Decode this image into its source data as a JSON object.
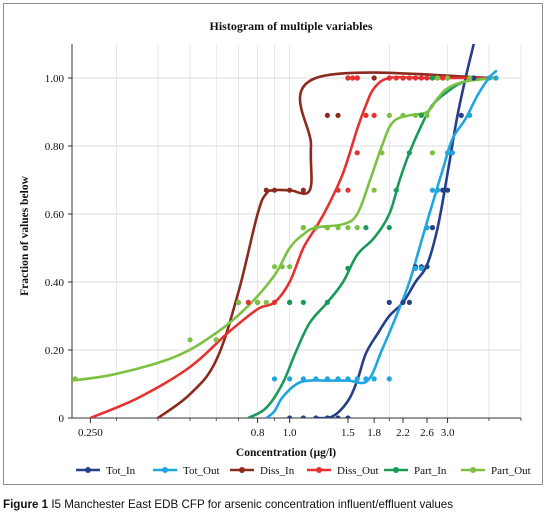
{
  "caption": {
    "prefix": "Figure 1",
    "text": " I5 Manchester East EDB CFP for arsenic concentration influent/effluent values"
  },
  "chart_data": {
    "type": "line",
    "title": "Histogram of multiple variables",
    "xlabel": "Concentration (µg/l)",
    "ylabel": "Fraction of values below",
    "x_scale": "log",
    "xlim": [
      0.22,
      5.0
    ],
    "ylim": [
      0,
      1.1
    ],
    "x_ticks": [
      0.25,
      0.8,
      1.0,
      1.5,
      1.8,
      2.2,
      2.6,
      3.0
    ],
    "x_tick_labels": [
      "0.250",
      "0.8",
      "1.0",
      "1.5",
      "1.8",
      "2.2",
      "2.6",
      "3.0"
    ],
    "y_ticks": [
      0,
      0.2,
      0.4,
      0.6,
      0.8,
      1.0
    ],
    "y_tick_labels": [
      "0",
      "0.20",
      "0.40",
      "0.60",
      "0.80",
      "1.00"
    ],
    "grid": true,
    "legend_position": "bottom",
    "series": [
      {
        "name": "Tot_In",
        "color": "#253f8a",
        "curve": [
          [
            1.2,
            0
          ],
          [
            1.35,
            0.005
          ],
          [
            1.5,
            0.05
          ],
          [
            1.6,
            0.11
          ],
          [
            1.7,
            0.19
          ],
          [
            1.85,
            0.25
          ],
          [
            2.0,
            0.3
          ],
          [
            2.2,
            0.34
          ],
          [
            2.4,
            0.4
          ],
          [
            2.6,
            0.45
          ],
          [
            2.8,
            0.56
          ],
          [
            3.0,
            0.72
          ],
          [
            3.2,
            0.88
          ],
          [
            3.4,
            1.0
          ],
          [
            3.6,
            1.1
          ]
        ],
        "points": [
          [
            1.0,
            0
          ],
          [
            1.1,
            0
          ],
          [
            1.2,
            0
          ],
          [
            1.3,
            0
          ],
          [
            1.4,
            0
          ],
          [
            1.5,
            0
          ],
          [
            2.0,
            0.34
          ],
          [
            2.2,
            0.34
          ],
          [
            2.3,
            0.34
          ],
          [
            2.4,
            0.445
          ],
          [
            2.5,
            0.445
          ],
          [
            2.6,
            0.445
          ],
          [
            2.7,
            0.56
          ],
          [
            2.9,
            0.67
          ],
          [
            3.0,
            0.67
          ],
          [
            3.1,
            0.78
          ],
          [
            3.3,
            0.89
          ],
          [
            3.6,
            1.0
          ]
        ]
      },
      {
        "name": "Tot_Out",
        "color": "#1fa5e0",
        "curve": [
          [
            0.85,
            0
          ],
          [
            0.9,
            0.02
          ],
          [
            0.95,
            0.06
          ],
          [
            1.05,
            0.1
          ],
          [
            1.15,
            0.11
          ],
          [
            1.3,
            0.11
          ],
          [
            1.5,
            0.11
          ],
          [
            1.72,
            0.11
          ],
          [
            1.9,
            0.2
          ],
          [
            2.1,
            0.3
          ],
          [
            2.3,
            0.4
          ],
          [
            2.5,
            0.52
          ],
          [
            2.7,
            0.63
          ],
          [
            2.9,
            0.73
          ],
          [
            3.1,
            0.82
          ],
          [
            3.4,
            0.88
          ],
          [
            3.7,
            0.95
          ],
          [
            4.0,
            1.0
          ],
          [
            4.2,
            1.02
          ]
        ],
        "points": [
          [
            0.9,
            0.115
          ],
          [
            1.0,
            0.115
          ],
          [
            1.1,
            0.115
          ],
          [
            1.2,
            0.115
          ],
          [
            1.3,
            0.115
          ],
          [
            1.4,
            0.115
          ],
          [
            1.5,
            0.115
          ],
          [
            1.6,
            0.115
          ],
          [
            1.7,
            0.115
          ],
          [
            1.8,
            0.115
          ],
          [
            2.0,
            0.115
          ],
          [
            2.4,
            0.44
          ],
          [
            2.5,
            0.44
          ],
          [
            2.6,
            0.56
          ],
          [
            2.7,
            0.67
          ],
          [
            2.8,
            0.67
          ],
          [
            3.0,
            0.78
          ],
          [
            3.1,
            0.78
          ],
          [
            3.5,
            0.89
          ],
          [
            4.0,
            1.0
          ],
          [
            4.2,
            1.0
          ]
        ]
      },
      {
        "name": "Diss_In",
        "color": "#8b2a1e",
        "curve": [
          [
            0.4,
            0
          ],
          [
            0.5,
            0.07
          ],
          [
            0.6,
            0.17
          ],
          [
            0.7,
            0.37
          ],
          [
            0.8,
            0.6
          ],
          [
            0.85,
            0.66
          ],
          [
            0.9,
            0.67
          ],
          [
            1.0,
            0.67
          ],
          [
            1.15,
            0.67
          ],
          [
            1.16,
            0.8
          ],
          [
            1.2,
            1.0
          ],
          [
            4.2,
            1.0
          ]
        ],
        "points": [
          [
            0.7,
            0.34
          ],
          [
            0.8,
            0.34
          ],
          [
            0.85,
            0.67
          ],
          [
            0.9,
            0.67
          ],
          [
            1.0,
            0.67
          ],
          [
            1.1,
            0.67
          ],
          [
            1.3,
            0.89
          ],
          [
            1.4,
            0.89
          ],
          [
            1.5,
            1.0
          ],
          [
            1.6,
            1.0
          ],
          [
            1.8,
            1.0
          ],
          [
            2.0,
            1.0
          ],
          [
            2.2,
            1.0
          ]
        ]
      },
      {
        "name": "Diss_Out",
        "color": "#e5312f",
        "curve": [
          [
            0.25,
            0
          ],
          [
            0.35,
            0.06
          ],
          [
            0.5,
            0.15
          ],
          [
            0.65,
            0.25
          ],
          [
            0.8,
            0.32
          ],
          [
            0.9,
            0.34
          ],
          [
            1.0,
            0.4
          ],
          [
            1.1,
            0.5
          ],
          [
            1.2,
            0.56
          ],
          [
            1.3,
            0.62
          ],
          [
            1.45,
            0.72
          ],
          [
            1.6,
            0.85
          ],
          [
            1.7,
            0.92
          ],
          [
            1.8,
            0.97
          ],
          [
            2.0,
            1.0
          ],
          [
            2.5,
            1.0
          ],
          [
            3.0,
            1.0
          ],
          [
            4.2,
            1.0
          ]
        ],
        "points": [
          [
            0.6,
            0.23
          ],
          [
            0.75,
            0.34
          ],
          [
            0.9,
            0.34
          ],
          [
            1.0,
            0.34
          ],
          [
            1.1,
            0.56
          ],
          [
            1.2,
            0.56
          ],
          [
            1.3,
            0.56
          ],
          [
            1.4,
            0.67
          ],
          [
            1.5,
            0.67
          ],
          [
            1.6,
            0.78
          ],
          [
            1.7,
            0.89
          ],
          [
            1.8,
            0.89
          ],
          [
            1.5,
            1.0
          ],
          [
            1.55,
            1.0
          ],
          [
            1.6,
            1.0
          ],
          [
            2.0,
            1.0
          ],
          [
            2.1,
            1.0
          ],
          [
            2.2,
            1.0
          ],
          [
            2.3,
            1.0
          ],
          [
            2.4,
            1.0
          ],
          [
            2.5,
            1.0
          ],
          [
            2.6,
            1.0
          ],
          [
            2.7,
            1.0
          ],
          [
            2.8,
            1.0
          ],
          [
            2.9,
            1.0
          ],
          [
            3.0,
            1.0
          ]
        ]
      },
      {
        "name": "Part_In",
        "color": "#1a9a5a",
        "curve": [
          [
            0.75,
            0
          ],
          [
            0.85,
            0.03
          ],
          [
            0.95,
            0.1
          ],
          [
            1.05,
            0.2
          ],
          [
            1.15,
            0.28
          ],
          [
            1.3,
            0.34
          ],
          [
            1.45,
            0.4
          ],
          [
            1.6,
            0.48
          ],
          [
            1.8,
            0.53
          ],
          [
            2.0,
            0.6
          ],
          [
            2.15,
            0.7
          ],
          [
            2.3,
            0.78
          ],
          [
            2.5,
            0.86
          ],
          [
            2.7,
            0.92
          ],
          [
            3.0,
            0.96
          ],
          [
            3.4,
            0.99
          ],
          [
            4.2,
            1.0
          ]
        ],
        "points": [
          [
            1.0,
            0.34
          ],
          [
            1.1,
            0.34
          ],
          [
            1.3,
            0.34
          ],
          [
            1.5,
            0.44
          ],
          [
            1.7,
            0.56
          ],
          [
            2.0,
            0.56
          ],
          [
            2.1,
            0.67
          ],
          [
            2.3,
            0.78
          ],
          [
            2.5,
            0.89
          ],
          [
            2.7,
            1.0
          ],
          [
            3.0,
            1.0
          ]
        ]
      },
      {
        "name": "Part_Out",
        "color": "#7dc142",
        "curve": [
          [
            0.22,
            0.11
          ],
          [
            0.3,
            0.13
          ],
          [
            0.45,
            0.18
          ],
          [
            0.6,
            0.25
          ],
          [
            0.75,
            0.33
          ],
          [
            0.9,
            0.42
          ],
          [
            1.0,
            0.5
          ],
          [
            1.1,
            0.54
          ],
          [
            1.2,
            0.56
          ],
          [
            1.45,
            0.57
          ],
          [
            1.6,
            0.6
          ],
          [
            1.75,
            0.7
          ],
          [
            1.9,
            0.8
          ],
          [
            2.05,
            0.87
          ],
          [
            2.3,
            0.89
          ],
          [
            2.6,
            0.9
          ],
          [
            2.8,
            0.94
          ],
          [
            3.0,
            0.97
          ],
          [
            3.4,
            0.99
          ],
          [
            4.2,
            1.0
          ]
        ],
        "points": [
          [
            0.225,
            0.115
          ],
          [
            0.5,
            0.23
          ],
          [
            0.6,
            0.23
          ],
          [
            0.7,
            0.34
          ],
          [
            0.8,
            0.34
          ],
          [
            0.85,
            0.34
          ],
          [
            0.9,
            0.445
          ],
          [
            0.95,
            0.445
          ],
          [
            1.0,
            0.445
          ],
          [
            1.1,
            0.56
          ],
          [
            1.2,
            0.56
          ],
          [
            1.3,
            0.56
          ],
          [
            1.4,
            0.56
          ],
          [
            1.5,
            0.56
          ],
          [
            1.6,
            0.56
          ],
          [
            1.8,
            0.67
          ],
          [
            1.9,
            0.78
          ],
          [
            2.0,
            0.89
          ],
          [
            2.2,
            0.89
          ],
          [
            2.4,
            0.89
          ],
          [
            2.6,
            0.89
          ],
          [
            2.7,
            0.78
          ],
          [
            2.8,
            1.0
          ],
          [
            3.0,
            1.0
          ],
          [
            3.5,
            1.0
          ]
        ]
      }
    ]
  }
}
